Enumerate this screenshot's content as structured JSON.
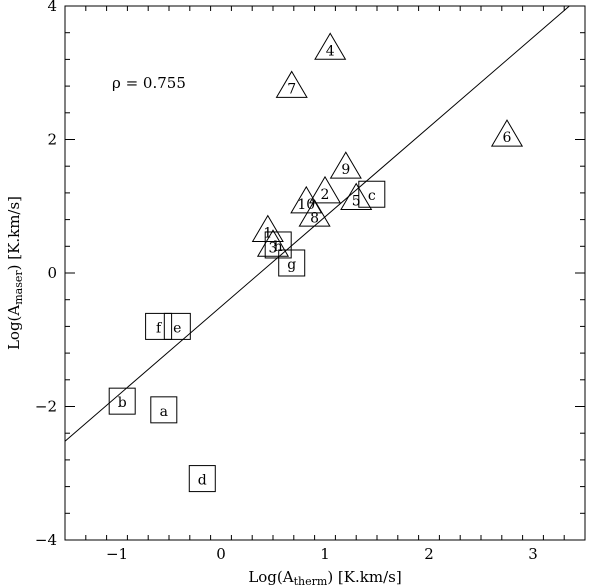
{
  "chart_data": {
    "type": "scatter",
    "title": "",
    "xlabel": {
      "main": "Log(A",
      "sub": "therm",
      "tail": ") [K.km/s]"
    },
    "ylabel": {
      "main": "Log(A",
      "sub": "maser",
      "tail": ") [K.km/s]"
    },
    "xlim": [
      -1.5,
      3.5
    ],
    "ylim": [
      -4,
      4
    ],
    "xticks": [
      -1,
      0,
      1,
      2,
      3
    ],
    "yticks": [
      -4,
      -2,
      0,
      2,
      4
    ],
    "xminor_step": 0.2,
    "yminor_step": 0.4,
    "grid": false,
    "annotation": "ρ = 0.755",
    "fit_line": {
      "x": [
        -1.5,
        3.35
      ],
      "y": [
        -2.52,
        4.0
      ]
    },
    "series": [
      {
        "marker": "triangle",
        "points": [
          {
            "label": "1",
            "x": 0.45,
            "y": 0.62
          },
          {
            "label": "2",
            "x": 1.0,
            "y": 1.2
          },
          {
            "label": "3",
            "x": 0.5,
            "y": 0.4
          },
          {
            "label": "4",
            "x": 1.05,
            "y": 3.35
          },
          {
            "label": "5",
            "x": 1.3,
            "y": 1.1
          },
          {
            "label": "6",
            "x": 2.75,
            "y": 2.05
          },
          {
            "label": "7",
            "x": 0.68,
            "y": 2.78
          },
          {
            "label": "8",
            "x": 0.9,
            "y": 0.85
          },
          {
            "label": "9",
            "x": 1.2,
            "y": 1.57
          },
          {
            "label": "10",
            "x": 0.82,
            "y": 1.05
          }
        ]
      },
      {
        "marker": "square",
        "points": [
          {
            "label": "a",
            "x": -0.55,
            "y": -2.05
          },
          {
            "label": "b",
            "x": -0.95,
            "y": -1.92
          },
          {
            "label": "c",
            "x": 1.45,
            "y": 1.18
          },
          {
            "label": "d",
            "x": -0.18,
            "y": -3.08
          },
          {
            "label": "e",
            "x": -0.42,
            "y": -0.8
          },
          {
            "label": "f",
            "x": -0.6,
            "y": -0.8
          },
          {
            "label": "g",
            "x": 0.68,
            "y": 0.15
          },
          {
            "label": "h",
            "x": 0.55,
            "y": 0.42
          }
        ]
      }
    ]
  }
}
